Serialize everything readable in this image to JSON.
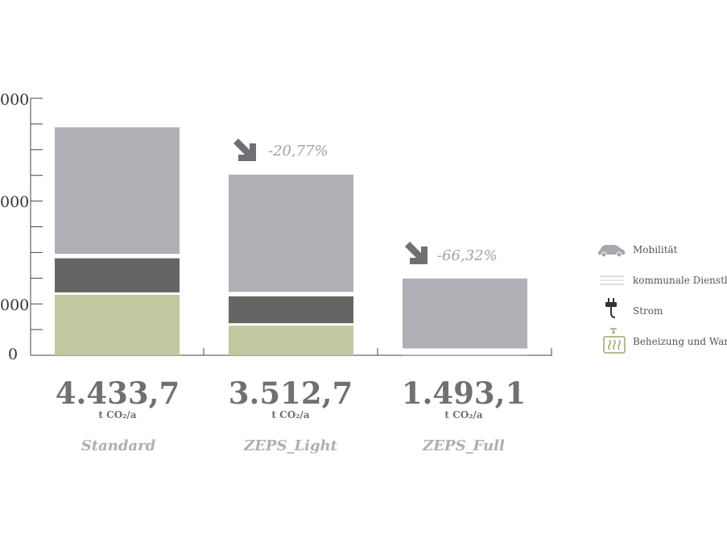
{
  "chart_data": {
    "type": "bar",
    "stacked": true,
    "categories": [
      "Standard",
      "ZEPS_Light",
      "ZEPS_Full"
    ],
    "totals": [
      "4.433,7",
      "3.512,7",
      "1.493,1"
    ],
    "unit": "t CO₂/a",
    "changes": [
      null,
      "-20,77%",
      "-66,32%"
    ],
    "series": [
      {
        "name": "Beheizung und Warmwasser",
        "color": "#c1c8a0",
        "values": [
          1200,
          600,
          40
        ]
      },
      {
        "name": "Strom",
        "color": "#676563",
        "values": [
          710,
          570,
          30
        ]
      },
      {
        "name": "kommunale Dienstleistungen",
        "color": "#ededee",
        "values": [
          40,
          40,
          40
        ]
      },
      {
        "name": "Mobilität",
        "color": "#afafb5",
        "values": [
          2484,
          2303,
          1383
        ]
      }
    ],
    "yaxis": {
      "tick_labels": [
        "000",
        "000",
        "000",
        "0"
      ],
      "ylim": [
        0,
        5000
      ]
    },
    "legend_position": "right",
    "legend_items": [
      {
        "label": "Mobilität",
        "icon": "car-icon"
      },
      {
        "label": "kommunale Dienstle",
        "icon": "lines-icon"
      },
      {
        "label": "Strom",
        "icon": "plug-icon"
      },
      {
        "label": "Beheizung und Warr",
        "icon": "heater-icon"
      }
    ]
  }
}
